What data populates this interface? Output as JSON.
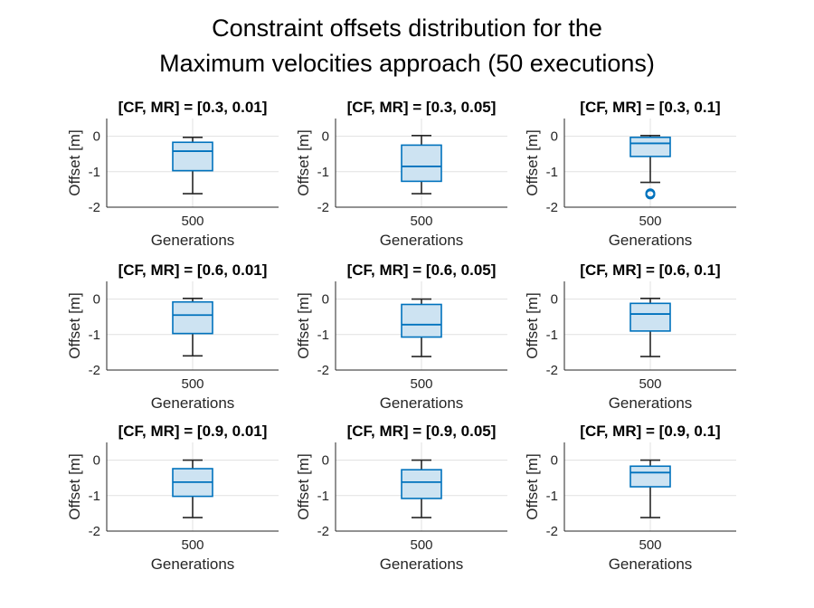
{
  "figure": {
    "title_line1": "Constraint offsets distribution for the",
    "title_line2": "Maximum velocities approach (50 executions)"
  },
  "colors": {
    "box_edge": "#0072BD",
    "box_fill": "#CDE3F2",
    "whisker": "#262626",
    "grid": "#e1e1e1",
    "axis": "#262626"
  },
  "chart_data": [
    {
      "type": "box",
      "title": "[CF, MR] = [0.3, 0.01]",
      "xlabel": "Generations",
      "ylabel": "Offset [m]",
      "categories": [
        "500"
      ],
      "ylim": [
        -2,
        0.5
      ],
      "yticks": [
        -2,
        -1,
        0
      ],
      "grid": true,
      "boxes": [
        {
          "whisker_low": -1.62,
          "q1": -0.97,
          "median": -0.42,
          "q3": -0.17,
          "whisker_high": -0.03,
          "outliers": []
        }
      ]
    },
    {
      "type": "box",
      "title": "[CF, MR] = [0.3, 0.05]",
      "xlabel": "Generations",
      "ylabel": "Offset [m]",
      "categories": [
        "500"
      ],
      "ylim": [
        -2,
        0.5
      ],
      "yticks": [
        -2,
        -1,
        0
      ],
      "grid": true,
      "boxes": [
        {
          "whisker_low": -1.62,
          "q1": -1.27,
          "median": -0.85,
          "q3": -0.25,
          "whisker_high": 0.02,
          "outliers": []
        }
      ]
    },
    {
      "type": "box",
      "title": "[CF, MR] = [0.3, 0.1]",
      "xlabel": "Generations",
      "ylabel": "Offset [m]",
      "categories": [
        "500"
      ],
      "ylim": [
        -2,
        0.5
      ],
      "yticks": [
        -2,
        -1,
        0
      ],
      "grid": true,
      "boxes": [
        {
          "whisker_low": -1.3,
          "q1": -0.57,
          "median": -0.2,
          "q3": -0.03,
          "whisker_high": 0.02,
          "outliers": [
            -1.61,
            -1.64
          ]
        }
      ]
    },
    {
      "type": "box",
      "title": "[CF, MR] = [0.6, 0.01]",
      "xlabel": "Generations",
      "ylabel": "Offset [m]",
      "categories": [
        "500"
      ],
      "ylim": [
        -2,
        0.5
      ],
      "yticks": [
        -2,
        -1,
        0
      ],
      "grid": true,
      "boxes": [
        {
          "whisker_low": -1.6,
          "q1": -0.97,
          "median": -0.45,
          "q3": -0.08,
          "whisker_high": 0.02,
          "outliers": []
        }
      ]
    },
    {
      "type": "box",
      "title": "[CF, MR] = [0.6, 0.05]",
      "xlabel": "Generations",
      "ylabel": "Offset [m]",
      "categories": [
        "500"
      ],
      "ylim": [
        -2,
        0.5
      ],
      "yticks": [
        -2,
        -1,
        0
      ],
      "grid": true,
      "boxes": [
        {
          "whisker_low": -1.62,
          "q1": -1.07,
          "median": -0.72,
          "q3": -0.15,
          "whisker_high": 0.0,
          "outliers": []
        }
      ]
    },
    {
      "type": "box",
      "title": "[CF, MR] = [0.6, 0.1]",
      "xlabel": "Generations",
      "ylabel": "Offset [m]",
      "categories": [
        "500"
      ],
      "ylim": [
        -2,
        0.5
      ],
      "yticks": [
        -2,
        -1,
        0
      ],
      "grid": true,
      "boxes": [
        {
          "whisker_low": -1.62,
          "q1": -0.9,
          "median": -0.42,
          "q3": -0.12,
          "whisker_high": 0.02,
          "outliers": []
        }
      ]
    },
    {
      "type": "box",
      "title": "[CF, MR] = [0.9, 0.01]",
      "xlabel": "Generations",
      "ylabel": "Offset [m]",
      "categories": [
        "500"
      ],
      "ylim": [
        -2,
        0.5
      ],
      "yticks": [
        -2,
        -1,
        0
      ],
      "grid": true,
      "boxes": [
        {
          "whisker_low": -1.62,
          "q1": -1.02,
          "median": -0.62,
          "q3": -0.24,
          "whisker_high": 0.0,
          "outliers": []
        }
      ]
    },
    {
      "type": "box",
      "title": "[CF, MR] = [0.9, 0.05]",
      "xlabel": "Generations",
      "ylabel": "Offset [m]",
      "categories": [
        "500"
      ],
      "ylim": [
        -2,
        0.5
      ],
      "yticks": [
        -2,
        -1,
        0
      ],
      "grid": true,
      "boxes": [
        {
          "whisker_low": -1.62,
          "q1": -1.08,
          "median": -0.62,
          "q3": -0.27,
          "whisker_high": 0.0,
          "outliers": []
        }
      ]
    },
    {
      "type": "box",
      "title": "[CF, MR] = [0.9, 0.1]",
      "xlabel": "Generations",
      "ylabel": "Offset [m]",
      "categories": [
        "500"
      ],
      "ylim": [
        -2,
        0.5
      ],
      "yticks": [
        -2,
        -1,
        0
      ],
      "grid": true,
      "boxes": [
        {
          "whisker_low": -1.62,
          "q1": -0.75,
          "median": -0.35,
          "q3": -0.17,
          "whisker_high": 0.0,
          "outliers": []
        }
      ]
    }
  ]
}
